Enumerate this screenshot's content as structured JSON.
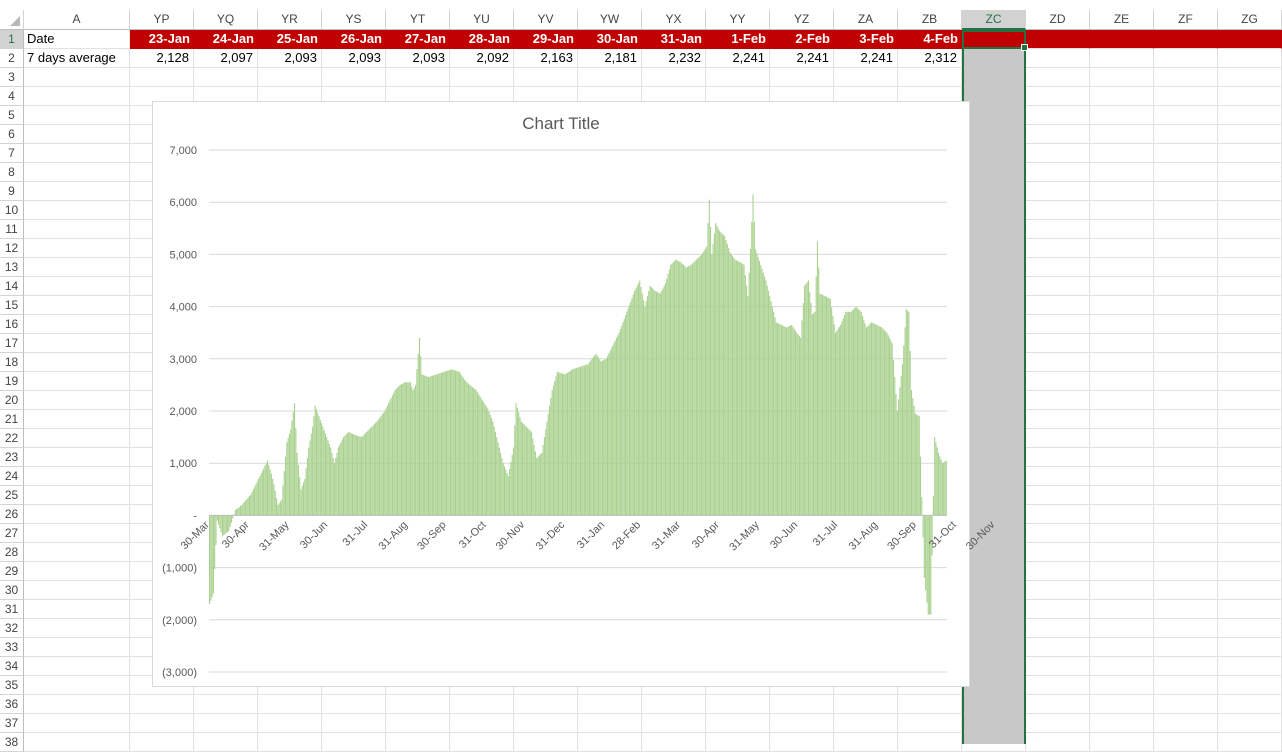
{
  "spreadsheet": {
    "columns": [
      "A",
      "YP",
      "YQ",
      "YR",
      "YS",
      "YT",
      "YU",
      "YV",
      "YW",
      "YX",
      "YY",
      "YZ",
      "ZA",
      "ZB",
      "ZC",
      "ZD",
      "ZE",
      "ZF",
      "ZG"
    ],
    "selected_column": "ZC",
    "row_numbers": [
      "1",
      "2",
      "3",
      "4",
      "5",
      "6",
      "7",
      "8",
      "9",
      "10",
      "11",
      "12",
      "13",
      "14",
      "15",
      "16",
      "17",
      "18",
      "19",
      "20",
      "21",
      "22",
      "23",
      "24",
      "25",
      "26",
      "27",
      "28",
      "29",
      "30",
      "31",
      "32",
      "33",
      "34",
      "35",
      "36",
      "37",
      "38"
    ],
    "row1": {
      "label": "Date",
      "values": [
        "23-Jan",
        "24-Jan",
        "25-Jan",
        "26-Jan",
        "27-Jan",
        "28-Jan",
        "29-Jan",
        "30-Jan",
        "31-Jan",
        "1-Feb",
        "2-Feb",
        "3-Feb",
        "4-Feb"
      ]
    },
    "row2": {
      "label": "7 days average",
      "values": [
        "2,128",
        "2,097",
        "2,093",
        "2,093",
        "2,093",
        "2,092",
        "2,163",
        "2,181",
        "2,232",
        "2,241",
        "2,241",
        "2,241",
        "2,312"
      ]
    },
    "header_fill_color": "#c00000",
    "selection_color": "#217346"
  },
  "chart_data": {
    "type": "bar",
    "title": "Chart Title",
    "bar_color": "#a9d18e",
    "ylim": [
      -3000,
      7000
    ],
    "y_ticks": [
      7000,
      6000,
      5000,
      4000,
      3000,
      2000,
      1000,
      0,
      -1000,
      -2000,
      -3000
    ],
    "y_tick_labels": [
      "7,000",
      "6,000",
      "5,000",
      "4,000",
      "3,000",
      "2,000",
      "1,000",
      "-",
      "(1,000)",
      "(2,000)",
      "(3,000)"
    ],
    "x_tick_labels": [
      "30-Mar",
      "30-Apr",
      "31-May",
      "30-Jun",
      "31-Jul",
      "31-Aug",
      "30-Sep",
      "31-Oct",
      "30-Nov",
      "31-Dec",
      "31-Jan",
      "28-Feb",
      "31-Mar",
      "30-Apr",
      "31-May",
      "30-Jun",
      "31-Jul",
      "31-Aug",
      "30-Sep",
      "31-Oct",
      "30-Nov"
    ],
    "x_tick_indices": [
      0,
      31,
      62,
      92,
      123,
      154,
      184,
      215,
      245,
      276,
      307,
      335,
      366,
      396,
      427,
      457,
      488,
      519,
      549,
      580,
      610
    ],
    "grid": true,
    "legend": "none",
    "series_profile": [
      [
        0,
        -1700
      ],
      [
        3,
        -1500
      ],
      [
        6,
        -100
      ],
      [
        10,
        -400
      ],
      [
        15,
        -300
      ],
      [
        20,
        100
      ],
      [
        25,
        200
      ],
      [
        32,
        400
      ],
      [
        38,
        700
      ],
      [
        42,
        900
      ],
      [
        45,
        1050
      ],
      [
        48,
        800
      ],
      [
        50,
        600
      ],
      [
        53,
        200
      ],
      [
        56,
        300
      ],
      [
        60,
        1400
      ],
      [
        63,
        1650
      ],
      [
        66,
        2150
      ],
      [
        68,
        1200
      ],
      [
        71,
        500
      ],
      [
        74,
        700
      ],
      [
        77,
        1300
      ],
      [
        80,
        1700
      ],
      [
        82,
        2100
      ],
      [
        85,
        1900
      ],
      [
        88,
        1700
      ],
      [
        91,
        1500
      ],
      [
        94,
        1300
      ],
      [
        97,
        1000
      ],
      [
        100,
        1300
      ],
      [
        104,
        1500
      ],
      [
        108,
        1600
      ],
      [
        112,
        1550
      ],
      [
        118,
        1500
      ],
      [
        124,
        1650
      ],
      [
        130,
        1800
      ],
      [
        136,
        2000
      ],
      [
        140,
        2200
      ],
      [
        144,
        2400
      ],
      [
        148,
        2500
      ],
      [
        152,
        2550
      ],
      [
        156,
        2550
      ],
      [
        158,
        2400
      ],
      [
        160,
        2500
      ],
      [
        163,
        3400
      ],
      [
        165,
        2700
      ],
      [
        170,
        2650
      ],
      [
        176,
        2700
      ],
      [
        182,
        2750
      ],
      [
        188,
        2800
      ],
      [
        194,
        2750
      ],
      [
        198,
        2600
      ],
      [
        202,
        2500
      ],
      [
        207,
        2400
      ],
      [
        212,
        2200
      ],
      [
        216,
        2050
      ],
      [
        220,
        1800
      ],
      [
        224,
        1400
      ],
      [
        228,
        1000
      ],
      [
        232,
        750
      ],
      [
        236,
        1300
      ],
      [
        238,
        2150
      ],
      [
        242,
        1800
      ],
      [
        246,
        1700
      ],
      [
        250,
        1600
      ],
      [
        254,
        1100
      ],
      [
        258,
        1200
      ],
      [
        262,
        1800
      ],
      [
        266,
        2400
      ],
      [
        270,
        2750
      ],
      [
        276,
        2700
      ],
      [
        282,
        2800
      ],
      [
        288,
        2850
      ],
      [
        294,
        2900
      ],
      [
        300,
        3100
      ],
      [
        304,
        2950
      ],
      [
        308,
        3000
      ],
      [
        312,
        3200
      ],
      [
        318,
        3500
      ],
      [
        324,
        3900
      ],
      [
        330,
        4300
      ],
      [
        334,
        4500
      ],
      [
        338,
        4000
      ],
      [
        342,
        4400
      ],
      [
        346,
        4300
      ],
      [
        350,
        4250
      ],
      [
        354,
        4450
      ],
      [
        358,
        4800
      ],
      [
        362,
        4900
      ],
      [
        366,
        4850
      ],
      [
        370,
        4750
      ],
      [
        374,
        4800
      ],
      [
        378,
        4900
      ],
      [
        382,
        5000
      ],
      [
        386,
        5150
      ],
      [
        388,
        6050
      ],
      [
        390,
        5000
      ],
      [
        393,
        5600
      ],
      [
        396,
        5450
      ],
      [
        400,
        5350
      ],
      [
        404,
        5050
      ],
      [
        408,
        4900
      ],
      [
        412,
        4850
      ],
      [
        415,
        4800
      ],
      [
        418,
        4200
      ],
      [
        420,
        5100
      ],
      [
        422,
        6150
      ],
      [
        424,
        5100
      ],
      [
        428,
        4800
      ],
      [
        432,
        4500
      ],
      [
        436,
        4100
      ],
      [
        440,
        3700
      ],
      [
        444,
        3650
      ],
      [
        448,
        3600
      ],
      [
        452,
        3650
      ],
      [
        456,
        3500
      ],
      [
        459,
        3400
      ],
      [
        462,
        4400
      ],
      [
        465,
        4500
      ],
      [
        468,
        3850
      ],
      [
        470,
        3900
      ],
      [
        472,
        5250
      ],
      [
        474,
        4250
      ],
      [
        478,
        4200
      ],
      [
        482,
        4150
      ],
      [
        486,
        3500
      ],
      [
        490,
        3650
      ],
      [
        494,
        3900
      ],
      [
        498,
        3900
      ],
      [
        502,
        4000
      ],
      [
        506,
        3900
      ],
      [
        510,
        3600
      ],
      [
        514,
        3700
      ],
      [
        518,
        3650
      ],
      [
        522,
        3600
      ],
      [
        526,
        3500
      ],
      [
        530,
        3300
      ],
      [
        534,
        2000
      ],
      [
        538,
        2900
      ],
      [
        541,
        3950
      ],
      [
        543,
        3900
      ],
      [
        545,
        2400
      ],
      [
        548,
        1950
      ],
      [
        551,
        1900
      ],
      [
        555,
        -1200
      ],
      [
        558,
        -1900
      ],
      [
        560,
        -1900
      ],
      [
        563,
        1500
      ],
      [
        566,
        1200
      ],
      [
        569,
        1000
      ],
      [
        572,
        1050
      ]
    ]
  }
}
